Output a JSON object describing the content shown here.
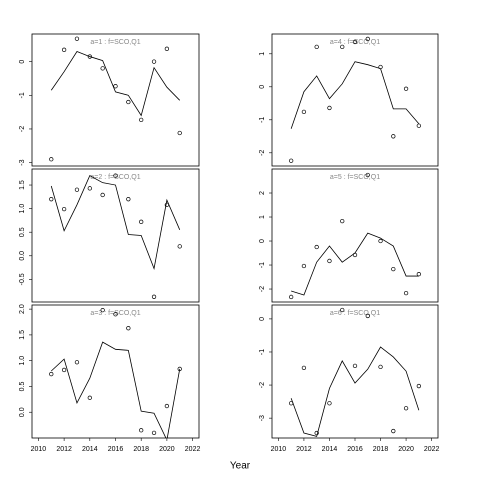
{
  "xlabel": "Year",
  "chart_data": [
    {
      "type": "line",
      "title": "a=1 : f=SCO,Q1",
      "color": "#000000",
      "x": [
        2011,
        2012,
        2013,
        2014,
        2015,
        2016,
        2017,
        2018,
        2019,
        2020,
        2021
      ],
      "values": [
        -0.85,
        -0.3,
        0.3,
        0.15,
        0.03,
        -0.9,
        -1.0,
        -1.6,
        -0.18,
        -0.76,
        -1.15
      ],
      "points": [
        -2.9,
        0.35,
        0.68,
        0.15,
        -0.2,
        -0.73,
        -1.2,
        -1.73,
        0,
        0.38,
        -2.12
      ],
      "xlim": [
        2009.5,
        2022.5
      ],
      "ylim": [
        -3.1,
        0.82
      ],
      "yticks": [
        0,
        -1,
        -2,
        -3
      ]
    },
    {
      "type": "line",
      "title": "a=2 : f=SCO,Q1",
      "color": "#000000",
      "x": [
        2011,
        2012,
        2013,
        2014,
        2015,
        2016,
        2017,
        2018,
        2019,
        2020,
        2021
      ],
      "values": [
        1.48,
        0.53,
        1.08,
        1.7,
        1.55,
        1.5,
        0.45,
        0.43,
        -0.27,
        1.18,
        0.55
      ],
      "points": [
        1.2,
        0.99,
        1.4,
        1.43,
        1.29,
        1.7,
        1.2,
        0.72,
        -0.87,
        1.08,
        0.2
      ],
      "xlim": [
        2009.5,
        2022.5
      ],
      "ylim": [
        -0.98,
        1.84
      ],
      "yticks": [
        1.5,
        {
          "value": 1,
          "label": "1.0"
        },
        0.5,
        {
          "value": 0,
          "label": "0.0"
        },
        -0.5
      ]
    },
    {
      "type": "line",
      "title": "a=3 : f=SCO,Q1",
      "color": "#000000",
      "x": [
        2011,
        2012,
        2013,
        2014,
        2015,
        2016,
        2017,
        2018,
        2019,
        2020,
        2021
      ],
      "values": [
        0.8,
        1.03,
        0.18,
        0.66,
        1.36,
        1.22,
        1.2,
        0.02,
        -0.02,
        -0.54,
        0.84
      ],
      "points": [
        0.74,
        0.82,
        0.97,
        0.28,
        1.98,
        1.9,
        1.63,
        -0.35,
        -0.4,
        0.12,
        0.84
      ],
      "xlim": [
        2009.5,
        2022.5
      ],
      "ylim": [
        -0.5,
        2.08
      ],
      "yticks": [
        {
          "value": 2,
          "label": "2.0"
        },
        1.5,
        {
          "value": 1,
          "label": "1.0"
        },
        0.5,
        {
          "value": 0,
          "label": "0.0"
        }
      ],
      "xticks": [
        2010,
        2012,
        2014,
        2016,
        2018,
        2020,
        2022
      ]
    },
    {
      "type": "line",
      "title": "a=4 : f=SCO,Q1",
      "color": "#000000",
      "x": [
        2011,
        2012,
        2013,
        2014,
        2015,
        2016,
        2017,
        2018,
        2019,
        2020,
        2021
      ],
      "values": [
        -1.27,
        -0.15,
        0.33,
        -0.36,
        0.09,
        0.76,
        0.67,
        0.55,
        -0.67,
        -0.67,
        -1.12
      ],
      "points": [
        -2.24,
        -0.76,
        1.21,
        -0.64,
        1.21,
        1.36,
        1.45,
        0.6,
        -1.5,
        -0.06,
        -1.18
      ],
      "xlim": [
        2009.5,
        2022.5
      ],
      "ylim": [
        -2.4,
        1.6
      ],
      "yticks": [
        1,
        0,
        -1,
        -2
      ]
    },
    {
      "type": "line",
      "title": "a=5 : f=SCO,Q1",
      "color": "#000000",
      "x": [
        2011,
        2012,
        2013,
        2014,
        2015,
        2016,
        2017,
        2018,
        2019,
        2020,
        2021
      ],
      "values": [
        -2.08,
        -2.25,
        -0.88,
        -0.21,
        -0.88,
        -0.5,
        0.33,
        0.12,
        -0.21,
        -1.46,
        -1.46
      ],
      "points": [
        -2.33,
        -1.04,
        -0.25,
        -0.83,
        0.83,
        -0.58,
        2.75,
        0,
        -1.17,
        -2.17,
        -1.38
      ],
      "xlim": [
        2009.5,
        2022.5
      ],
      "ylim": [
        -2.54,
        3.0
      ],
      "yticks": [
        2,
        1,
        0,
        -1,
        -2
      ]
    },
    {
      "type": "line",
      "title": "a=6 : f=SCO,Q1",
      "color": "#000000",
      "x": [
        2011,
        2012,
        2013,
        2014,
        2015,
        2016,
        2017,
        2018,
        2019,
        2020,
        2021
      ],
      "values": [
        -2.4,
        -3.45,
        -3.55,
        -2.1,
        -1.27,
        -1.94,
        -1.52,
        -0.85,
        -1.15,
        -1.58,
        -2.76
      ],
      "points": [
        -2.55,
        -1.48,
        -3.45,
        -2.55,
        0.27,
        -1.42,
        0.09,
        -1.45,
        -3.39,
        -2.7,
        -2.03
      ],
      "xlim": [
        2009.5,
        2022.5
      ],
      "ylim": [
        -3.6,
        0.42
      ],
      "yticks": [
        0,
        -1,
        -2,
        -3
      ],
      "xticks": [
        2010,
        2012,
        2014,
        2016,
        2018,
        2020,
        2022
      ]
    }
  ]
}
